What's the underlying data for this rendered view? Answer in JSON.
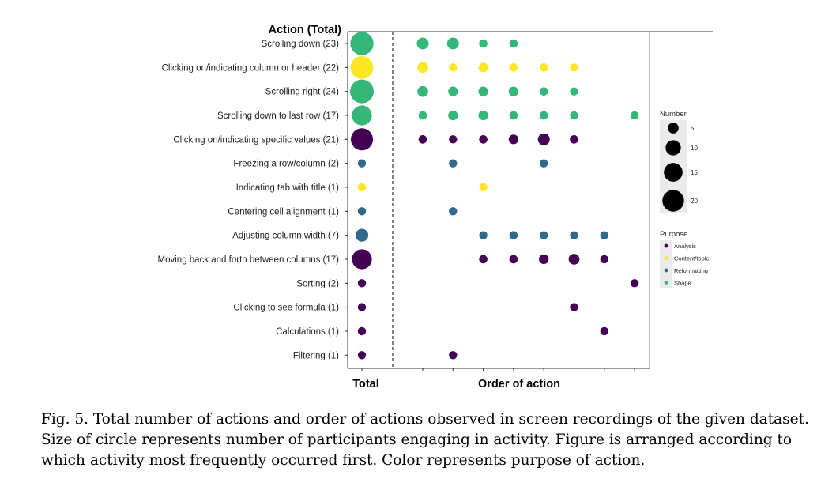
{
  "chart_data": {
    "type": "bubble",
    "y_title": "Action (Total)",
    "x_label_total": "Total",
    "x_label_order": "Order of action",
    "order_positions": [
      1,
      2,
      3,
      4,
      5,
      6,
      7,
      8
    ],
    "rows": [
      {
        "label": "Scrolling down (23)",
        "total": 23,
        "purpose": "Shape",
        "order": [
          {
            "x": 1,
            "n": 6
          },
          {
            "x": 2,
            "n": 6
          },
          {
            "x": 3,
            "n": 3
          },
          {
            "x": 4,
            "n": 3
          }
        ]
      },
      {
        "label": "Clicking on/indicating column or header (22)",
        "total": 22,
        "purpose": "Content/topic",
        "order": [
          {
            "x": 1,
            "n": 5
          },
          {
            "x": 2,
            "n": 1
          },
          {
            "x": 3,
            "n": 4
          },
          {
            "x": 4,
            "n": 3
          },
          {
            "x": 5,
            "n": 3
          },
          {
            "x": 6,
            "n": 1
          }
        ]
      },
      {
        "label": "Scrolling right (24)",
        "total": 24,
        "purpose": "Shape",
        "order": [
          {
            "x": 1,
            "n": 5
          },
          {
            "x": 2,
            "n": 4
          },
          {
            "x": 3,
            "n": 4
          },
          {
            "x": 4,
            "n": 4
          },
          {
            "x": 5,
            "n": 3
          },
          {
            "x": 6,
            "n": 1
          }
        ]
      },
      {
        "label": "Scrolling down to last row (17)",
        "total": 17,
        "purpose": "Shape",
        "order": [
          {
            "x": 1,
            "n": 3
          },
          {
            "x": 2,
            "n": 4
          },
          {
            "x": 3,
            "n": 4
          },
          {
            "x": 4,
            "n": 3
          },
          {
            "x": 5,
            "n": 3
          },
          {
            "x": 6,
            "n": 1
          },
          {
            "x": 8,
            "n": 1
          }
        ]
      },
      {
        "label": "Clicking on/indicating specific values (21)",
        "total": 21,
        "purpose": "Analysis",
        "order": [
          {
            "x": 1,
            "n": 3
          },
          {
            "x": 2,
            "n": 1
          },
          {
            "x": 3,
            "n": 3
          },
          {
            "x": 4,
            "n": 4
          },
          {
            "x": 5,
            "n": 6
          },
          {
            "x": 6,
            "n": 3
          }
        ]
      },
      {
        "label": "Freezing a row/column (2)",
        "total": 2,
        "purpose": "Reformatting",
        "order": [
          {
            "x": 2,
            "n": 1
          },
          {
            "x": 5,
            "n": 1
          }
        ]
      },
      {
        "label": "Indicating tab with title (1)",
        "total": 1,
        "purpose": "Content/topic",
        "order": [
          {
            "x": 3,
            "n": 1
          }
        ]
      },
      {
        "label": "Centering cell alignment (1)",
        "total": 1,
        "purpose": "Reformatting",
        "order": [
          {
            "x": 2,
            "n": 1
          }
        ]
      },
      {
        "label": "Adjusting column width (7)",
        "total": 7,
        "purpose": "Reformatting",
        "order": [
          {
            "x": 3,
            "n": 1
          },
          {
            "x": 4,
            "n": 3
          },
          {
            "x": 5,
            "n": 1
          },
          {
            "x": 6,
            "n": 1
          },
          {
            "x": 7,
            "n": 1
          }
        ]
      },
      {
        "label": "Moving back and forth between columns (17)",
        "total": 17,
        "purpose": "Analysis",
        "order": [
          {
            "x": 3,
            "n": 3
          },
          {
            "x": 4,
            "n": 3
          },
          {
            "x": 5,
            "n": 4
          },
          {
            "x": 6,
            "n": 5
          },
          {
            "x": 7,
            "n": 2
          }
        ]
      },
      {
        "label": "Sorting (2)",
        "total": 2,
        "purpose": "Analysis",
        "order": [
          {
            "x": 8,
            "n": 2
          }
        ]
      },
      {
        "label": "Clicking to see formula (1)",
        "total": 1,
        "purpose": "Analysis",
        "order": [
          {
            "x": 6,
            "n": 1
          }
        ]
      },
      {
        "label": "Calculations (1)",
        "total": 1,
        "purpose": "Analysis",
        "order": [
          {
            "x": 7,
            "n": 1
          }
        ]
      },
      {
        "label": "Filtering (1)",
        "total": 1,
        "purpose": "Analysis",
        "order": [
          {
            "x": 2,
            "n": 1
          }
        ]
      }
    ],
    "size_legend": {
      "title": "Number",
      "values": [
        5,
        10,
        15,
        20
      ]
    },
    "color_legend": {
      "title": "Purpose",
      "items": [
        {
          "name": "Analysis",
          "color": "#440154"
        },
        {
          "name": "Content/topic",
          "color": "#fde725"
        },
        {
          "name": "Reformatting",
          "color": "#31688e"
        },
        {
          "name": "Shape",
          "color": "#35b779"
        }
      ]
    }
  },
  "caption": "Fig. 5.  Total number of actions and order of actions observed in screen recordings of the given dataset. Size of circle represents number of participants engaging in activity. Figure is arranged according to which activity most frequently occurred first. Color represents purpose of action."
}
